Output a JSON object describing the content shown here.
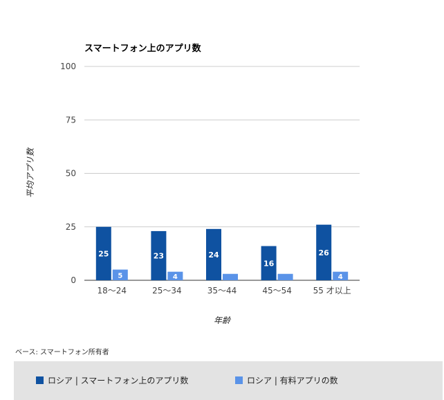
{
  "chart_data": {
    "type": "bar",
    "title": "スマートフォン上のアプリ数",
    "xlabel": "年齢",
    "ylabel": "平均アプリ数",
    "ylim": [
      0,
      100
    ],
    "yticks": [
      0,
      25,
      50,
      75,
      100
    ],
    "grid": true,
    "legend_position": "bottom",
    "categories": [
      "18〜24",
      "25〜34",
      "35〜44",
      "45〜54",
      "55 才以上"
    ],
    "series": [
      {
        "name": "ロシア | スマートフォン上のアプリ数",
        "values": [
          25,
          23,
          24,
          16,
          26
        ],
        "color": "#0f52a1"
      },
      {
        "name": "ロシア | 有料アプリの数",
        "values": [
          5,
          4,
          3,
          3,
          4
        ],
        "labels": [
          "5",
          "4",
          "",
          "",
          "4"
        ],
        "color": "#5a93e8"
      }
    ]
  },
  "base_note": "ベース: スマートフォン所有者"
}
